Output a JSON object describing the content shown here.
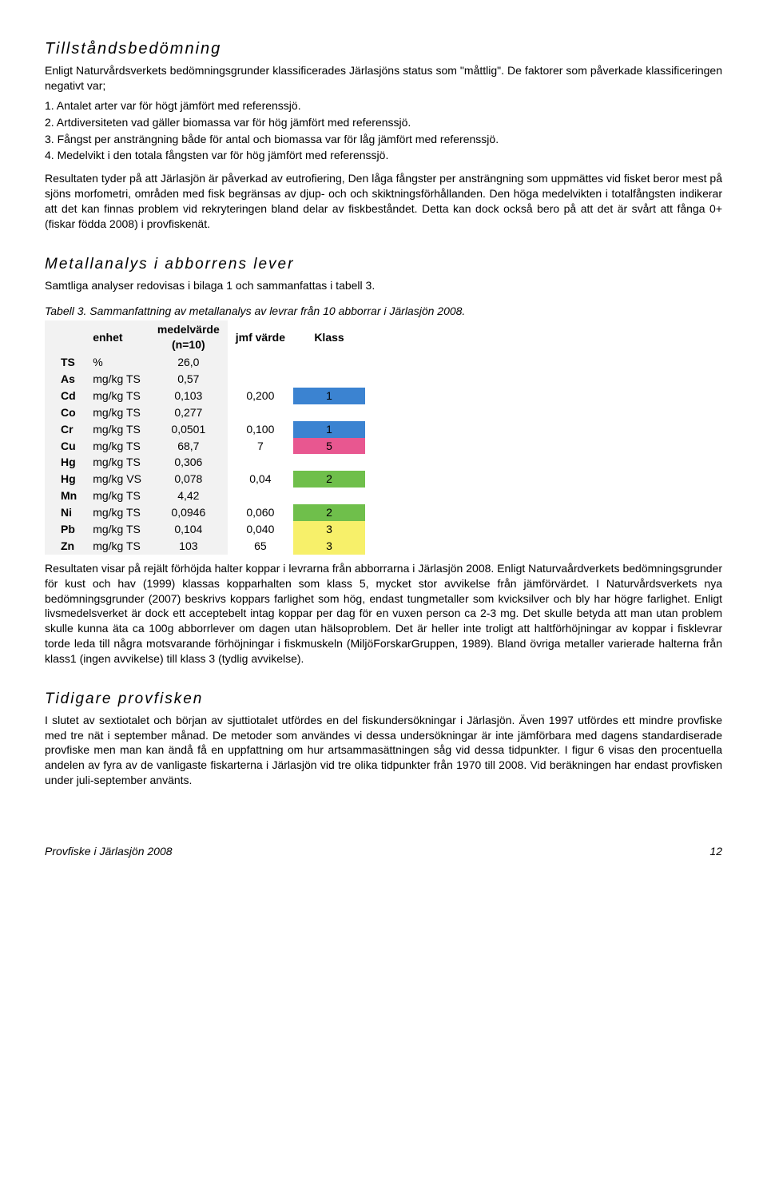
{
  "section1": {
    "title": "Tillståndsbedömning",
    "intro": "Enligt Naturvårdsverkets bedömningsgrunder klassificerades Järlasjöns status som \"måttlig\". De faktorer som påverkade klassificeringen negativt var;",
    "items": [
      "1. Antalet arter var för högt jämfört med referenssjö.",
      "2. Artdiversiteten vad gäller biomassa var för hög jämfört med referenssjö.",
      "3. Fångst per ansträngning både för antal och biomassa var för låg jämfört med referenssjö.",
      "4. Medelvikt i den totala fångsten var för hög jämfört med referenssjö."
    ],
    "para2": "Resultaten tyder på att Järlasjön är påverkad av eutrofiering, Den låga fångster per ansträngning som uppmättes vid fisket beror mest på sjöns morfometri, områden med fisk begränsas av djup- och och skiktningsförhållanden. Den höga medelvikten i totalfångsten indikerar att det kan finnas problem vid rekryteringen bland delar av fiskbeståndet. Detta kan dock också bero på att det är svårt att fånga 0+ (fiskar födda 2008) i provfiskenät."
  },
  "section2": {
    "title": "Metallanalys i abborrens lever",
    "intro": "Samtliga analyser redovisas i bilaga 1 och sammanfattas i tabell 3.",
    "table_caption": "Tabell 3. Sammanfattning av metallanalys av levrar från 10 abborrar i Järlasjön 2008.",
    "headers": {
      "unit": "enhet",
      "mean": "medelvärde",
      "mean_sub": "(n=10)",
      "jmf": "jmf värde",
      "klass": "Klass"
    },
    "klass_colors": {
      "1": "#3b83d1",
      "2": "#6fbf4b",
      "3": "#f7f06a",
      "5": "#e85790"
    },
    "rows": [
      {
        "sym": "TS",
        "unit": "%",
        "mean": "26,0",
        "jmf": "",
        "klass": ""
      },
      {
        "sym": "As",
        "unit": "mg/kg TS",
        "mean": "0,57",
        "jmf": "",
        "klass": ""
      },
      {
        "sym": "Cd",
        "unit": "mg/kg TS",
        "mean": "0,103",
        "jmf": "0,200",
        "klass": "1"
      },
      {
        "sym": "Co",
        "unit": "mg/kg TS",
        "mean": "0,277",
        "jmf": "",
        "klass": ""
      },
      {
        "sym": "Cr",
        "unit": "mg/kg TS",
        "mean": "0,0501",
        "jmf": "0,100",
        "klass": "1"
      },
      {
        "sym": "Cu",
        "unit": "mg/kg TS",
        "mean": "68,7",
        "jmf": "7",
        "klass": "5"
      },
      {
        "sym": "Hg",
        "unit": "mg/kg TS",
        "mean": "0,306",
        "jmf": "",
        "klass": ""
      },
      {
        "sym": "Hg",
        "unit": "mg/kg VS",
        "mean": "0,078",
        "jmf": "0,04",
        "klass": "2"
      },
      {
        "sym": "Mn",
        "unit": "mg/kg TS",
        "mean": "4,42",
        "jmf": "",
        "klass": ""
      },
      {
        "sym": "Ni",
        "unit": "mg/kg TS",
        "mean": "0,0946",
        "jmf": "0,060",
        "klass": "2"
      },
      {
        "sym": "Pb",
        "unit": "mg/kg TS",
        "mean": "0,104",
        "jmf": "0,040",
        "klass": "3"
      },
      {
        "sym": "Zn",
        "unit": "mg/kg TS",
        "mean": "103",
        "jmf": "65",
        "klass": "3"
      }
    ],
    "para_after": "Resultaten visar på rejält förhöjda halter koppar i levrarna från abborrarna i Järlasjön 2008. Enligt Naturvaårdverkets bedömningsgrunder för kust och hav (1999) klassas kopparhalten som klass 5, mycket stor avvikelse från jämförvärdet. I Naturvårdsverkets nya bedömningsgrunder (2007) beskrivs koppars farlighet som hög, endast tungmetaller som kvicksilver och bly har högre farlighet. Enligt livsmedelsverket är dock ett acceptebelt intag koppar per dag för en vuxen person ca 2-3 mg. Det skulle betyda att man utan problem skulle kunna äta ca 100g abborrlever om dagen utan hälsoproblem. Det är heller inte troligt att haltförhöjningar av koppar i fisklevrar torde leda till några motsvarande förhöjningar i fiskmuskeln (MiljöForskarGruppen, 1989). Bland övriga metaller varierade halterna från klass1 (ingen avvikelse) till klass 3 (tydlig avvikelse)."
  },
  "section3": {
    "title": "Tidigare provfisken",
    "para": "I slutet av sextiotalet och början av sjuttiotalet utfördes en del fiskundersökningar i Järlasjön. Även 1997 utfördes ett mindre provfiske med tre nät i september månad. De metoder som användes vi dessa undersökningar är inte jämförbara med dagens standardiserade provfiske men man kan ändå få en uppfattning om hur artsammasättningen såg vid dessa tidpunkter. I figur 6 visas den procentuella andelen av fyra av de vanligaste fiskarterna i Järlasjön vid tre olika tidpunkter från 1970 till 2008. Vid beräkningen har endast provfisken under juli-september använts."
  },
  "footer": {
    "left": "Provfiske i Järlasjön 2008",
    "page": "12"
  }
}
